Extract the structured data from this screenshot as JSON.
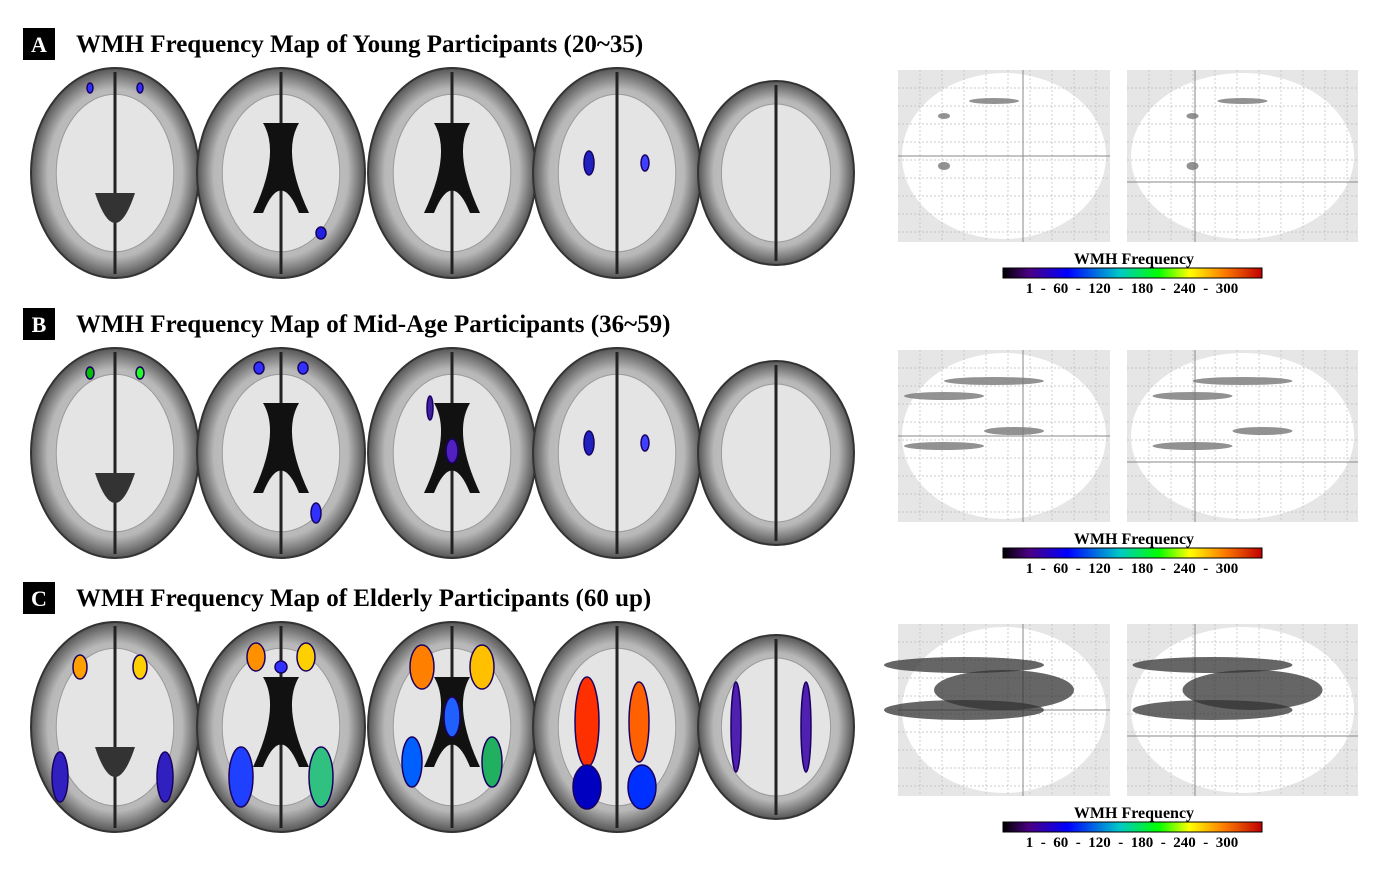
{
  "panels": [
    {
      "letter": "A",
      "title": "WMH Frequency Map of Young Participants (20~35)",
      "colorbar": {
        "label": "WMH Frequency",
        "ticks": "1  -  60  -  120  -  180  -  240  -  300"
      }
    },
    {
      "letter": "B",
      "title": "WMH Frequency Map of Mid-Age Participants (36~59)",
      "colorbar": {
        "label": "WMH Frequency",
        "ticks": "1  -  60  -  120  -  180  -  240  -  300"
      }
    },
    {
      "letter": "C",
      "title": "WMH Frequency Map of Elderly Participants (60 up)",
      "colorbar": {
        "label": "WMH Frequency",
        "ticks": "1  -  60  -  120  -  180  -  240  -  300"
      }
    }
  ]
}
